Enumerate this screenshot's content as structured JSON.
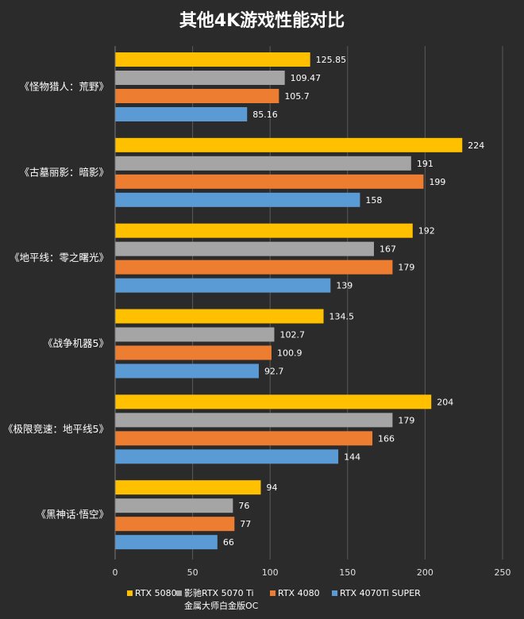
{
  "chart_data": {
    "type": "bar",
    "orientation": "horizontal",
    "title": "其他4K游戏性能对比",
    "categories": [
      "《怪物猎人：荒野》",
      "《古墓丽影：暗影》",
      "《地平线：零之曙光》",
      "《战争机器5》",
      "《极限竞速：地平线5》",
      "《黑神话·悟空》"
    ],
    "series": [
      {
        "name": "RTX 5080",
        "color": "#ffc000",
        "values": [
          125.85,
          224,
          192,
          134.5,
          204,
          94
        ],
        "labels": [
          "125.85",
          "224",
          "192",
          "134.5",
          "204",
          "94"
        ]
      },
      {
        "name": "影驰RTX 5070 Ti",
        "name_line2": "金属大师白金版OC",
        "color": "#a5a5a5",
        "values": [
          109.47,
          191,
          167,
          102.7,
          179,
          76
        ],
        "labels": [
          "109.47",
          "191",
          "167",
          "102.7",
          "179",
          "76"
        ]
      },
      {
        "name": "RTX 4080",
        "color": "#ed7d31",
        "values": [
          105.7,
          199,
          179,
          100.9,
          166,
          77
        ],
        "labels": [
          "105.7",
          "199",
          "179",
          "100.9",
          "166",
          "77"
        ]
      },
      {
        "name": "RTX 4070Ti SUPER",
        "color": "#5b9bd5",
        "values": [
          85.16,
          158,
          139,
          92.7,
          144,
          66
        ],
        "labels": [
          "85.16",
          "158",
          "139",
          "92.7",
          "144",
          "66"
        ]
      }
    ],
    "xlim": [
      0,
      250
    ],
    "xticks": [
      "0",
      "50",
      "100",
      "150",
      "200",
      "250"
    ],
    "xlabel": "",
    "ylabel": "",
    "grid": true,
    "legend": "bottom"
  }
}
